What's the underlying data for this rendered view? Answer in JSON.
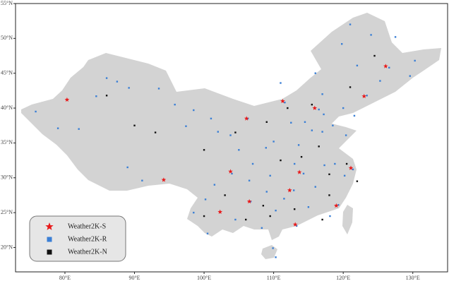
{
  "chart_data": {
    "type": "scatter",
    "projection": "lonlat",
    "xlim": [
      72.9,
      135.0
    ],
    "ylim": [
      16.5,
      55.0
    ],
    "xticks": [
      {
        "value": 80,
        "label": "80°E"
      },
      {
        "value": 90,
        "label": "90°E"
      },
      {
        "value": 100,
        "label": "100°E"
      },
      {
        "value": 110,
        "label": "110°E"
      },
      {
        "value": 120,
        "label": "120°E"
      },
      {
        "value": 130,
        "label": "130°E"
      }
    ],
    "yticks": [
      {
        "value": 20,
        "label": "20°N"
      },
      {
        "value": 25,
        "label": "25°N"
      },
      {
        "value": 30,
        "label": "30°N"
      },
      {
        "value": 35,
        "label": "35°N"
      },
      {
        "value": 40,
        "label": "40°N"
      },
      {
        "value": 45,
        "label": "45°N"
      },
      {
        "value": 50,
        "label": "50°N"
      },
      {
        "value": 55,
        "label": "55°N"
      }
    ],
    "legend": "lower left",
    "series": [
      {
        "name": "Weather2K-R",
        "color": "#3a7fd5",
        "marker": "square",
        "x": [
          75.8,
          79.0,
          82.0,
          84.5,
          87.5,
          86.0,
          89.2,
          93.5,
          95.8,
          98.5,
          101.0,
          103.8,
          102.0,
          97.4,
          91.1,
          89.0,
          100.2,
          101.5,
          104.0,
          106.5,
          108.9,
          110.0,
          112.5,
          113.6,
          114.5,
          116.5,
          117.2,
          115.5,
          117.0,
          118.5,
          120.4,
          118.8,
          117.3,
          120.2,
          121.4,
          119.3,
          118.1,
          115.0,
          113.3,
          110.3,
          108.3,
          106.7,
          104.5,
          109.0,
          111.5,
          114.3,
          116.0,
          112.9,
          113.0,
          109.5,
          107.0,
          105.0,
          111.6,
          106.3,
          123.4,
          125.3,
          126.6,
          129.6,
          130.3,
          127.5,
          124.0,
          121.0,
          119.8,
          116.0,
          111.0,
          122.0,
          117.0,
          109.9,
          110.3,
          100.5,
          98.5,
          120.0,
          121.6
        ],
        "values": [
          39.5,
          37.1,
          37.0,
          41.7,
          43.8,
          44.3,
          42.9,
          42.8,
          40.5,
          39.7,
          38.5,
          36.1,
          36.6,
          37.4,
          29.6,
          31.5,
          26.9,
          29.0,
          30.6,
          29.6,
          34.3,
          35.2,
          37.9,
          34.7,
          38.0,
          39.8,
          39.1,
          36.8,
          36.6,
          37.5,
          36.1,
          32.0,
          31.8,
          30.3,
          31.2,
          26.1,
          24.5,
          25.8,
          23.1,
          25.3,
          22.8,
          26.6,
          24.0,
          28.0,
          27.0,
          30.6,
          28.7,
          28.2,
          32.0,
          30.3,
          32.0,
          34.0,
          40.8,
          38.5,
          41.8,
          43.9,
          45.8,
          44.6,
          46.8,
          50.2,
          50.5,
          52.0,
          49.2,
          45.0,
          43.6,
          46.1,
          42.0,
          19.9,
          18.6,
          22.0,
          25.0,
          40.0,
          38.9
        ]
      },
      {
        "name": "Weather2K-N",
        "color": "#111111",
        "marker": "square",
        "x": [
          86.0,
          90.0,
          93.0,
          100.0,
          103.0,
          106.0,
          108.5,
          111.0,
          114.0,
          116.5,
          118.0,
          115.5,
          112.0,
          109.0,
          120.5,
          122.0,
          117.0,
          121.0,
          124.5,
          104.5,
          113.0,
          109.5,
          100.0,
          118.0
        ],
        "values": [
          41.8,
          37.5,
          36.5,
          34.0,
          27.5,
          24.0,
          26.0,
          32.5,
          33.0,
          34.5,
          30.5,
          40.5,
          40.0,
          38.0,
          32.0,
          29.5,
          24.0,
          43.0,
          47.5,
          36.5,
          25.5,
          24.5,
          24.5,
          27.5
        ]
      },
      {
        "name": "Weather2K-S",
        "color": "#e8191a",
        "marker": "star",
        "x": [
          80.3,
          94.2,
          106.1,
          111.3,
          126.1,
          123.0,
          115.9,
          103.8,
          113.7,
          121.1,
          112.3,
          106.5,
          102.3,
          119.0,
          113.1
        ],
        "values": [
          41.2,
          29.7,
          38.5,
          41.0,
          46.0,
          41.7,
          40.0,
          30.9,
          30.8,
          31.4,
          28.2,
          26.6,
          25.1,
          26.0,
          23.3
        ]
      }
    ],
    "legend_order": [
      2,
      0,
      1
    ]
  }
}
